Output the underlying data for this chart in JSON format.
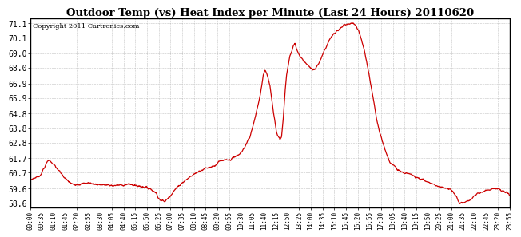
{
  "title": "Outdoor Temp (vs) Heat Index per Minute (Last 24 Hours) 20110620",
  "copyright": "Copyright 2011 Cartronics.com",
  "line_color": "#cc0000",
  "background_color": "#ffffff",
  "grid_color": "#aaaaaa",
  "y_ticks": [
    58.6,
    59.6,
    60.7,
    61.7,
    62.8,
    63.8,
    64.8,
    65.9,
    66.9,
    68.0,
    69.0,
    70.1,
    71.1
  ],
  "ylim": [
    58.3,
    71.4
  ],
  "x_labels": [
    "00:00",
    "00:35",
    "01:10",
    "01:45",
    "02:20",
    "02:55",
    "03:30",
    "04:05",
    "04:40",
    "05:15",
    "05:50",
    "06:25",
    "07:00",
    "07:35",
    "08:10",
    "08:45",
    "09:20",
    "09:55",
    "10:30",
    "11:05",
    "11:40",
    "12:15",
    "12:50",
    "13:25",
    "14:00",
    "14:35",
    "15:10",
    "15:45",
    "16:20",
    "16:55",
    "17:30",
    "18:05",
    "18:40",
    "19:15",
    "19:50",
    "20:25",
    "21:00",
    "21:35",
    "22:10",
    "22:45",
    "23:20",
    "23:55"
  ],
  "keypoints": [
    [
      0.0,
      60.2
    ],
    [
      0.5,
      60.5
    ],
    [
      0.92,
      61.6
    ],
    [
      1.1,
      61.4
    ],
    [
      1.4,
      60.9
    ],
    [
      1.75,
      60.3
    ],
    [
      2.1,
      59.9
    ],
    [
      2.5,
      59.9
    ],
    [
      2.9,
      60.0
    ],
    [
      3.3,
      59.9
    ],
    [
      3.7,
      59.85
    ],
    [
      4.2,
      59.8
    ],
    [
      4.6,
      59.85
    ],
    [
      5.0,
      59.9
    ],
    [
      5.3,
      59.8
    ],
    [
      5.6,
      59.75
    ],
    [
      6.0,
      59.6
    ],
    [
      6.3,
      59.3
    ],
    [
      6.5,
      58.8
    ],
    [
      6.75,
      58.7
    ],
    [
      7.0,
      59.1
    ],
    [
      7.3,
      59.6
    ],
    [
      7.6,
      60.0
    ],
    [
      7.9,
      60.3
    ],
    [
      8.2,
      60.6
    ],
    [
      8.5,
      60.85
    ],
    [
      8.75,
      61.0
    ],
    [
      9.0,
      61.1
    ],
    [
      9.25,
      61.2
    ],
    [
      9.5,
      61.5
    ],
    [
      9.75,
      61.55
    ],
    [
      10.0,
      61.6
    ],
    [
      10.25,
      61.8
    ],
    [
      10.5,
      62.0
    ],
    [
      10.75,
      62.5
    ],
    [
      11.0,
      63.2
    ],
    [
      11.25,
      64.5
    ],
    [
      11.5,
      66.0
    ],
    [
      11.67,
      67.5
    ],
    [
      11.75,
      67.8
    ],
    [
      11.83,
      67.6
    ],
    [
      12.0,
      66.8
    ],
    [
      12.17,
      65.0
    ],
    [
      12.33,
      63.5
    ],
    [
      12.5,
      63.0
    ],
    [
      12.58,
      63.2
    ],
    [
      12.67,
      64.5
    ],
    [
      12.75,
      66.2
    ],
    [
      12.83,
      67.5
    ],
    [
      13.0,
      68.8
    ],
    [
      13.17,
      69.5
    ],
    [
      13.25,
      69.7
    ],
    [
      13.33,
      69.3
    ],
    [
      13.5,
      68.8
    ],
    [
      13.67,
      68.5
    ],
    [
      13.83,
      68.3
    ],
    [
      14.0,
      68.0
    ],
    [
      14.17,
      67.8
    ],
    [
      14.33,
      68.0
    ],
    [
      14.5,
      68.5
    ],
    [
      14.67,
      69.0
    ],
    [
      14.83,
      69.5
    ],
    [
      15.0,
      70.0
    ],
    [
      15.17,
      70.3
    ],
    [
      15.33,
      70.5
    ],
    [
      15.5,
      70.7
    ],
    [
      15.67,
      70.9
    ],
    [
      15.83,
      71.0
    ],
    [
      16.0,
      71.0
    ],
    [
      16.17,
      71.1
    ],
    [
      16.25,
      71.0
    ],
    [
      16.33,
      70.8
    ],
    [
      16.5,
      70.3
    ],
    [
      16.67,
      69.5
    ],
    [
      16.83,
      68.5
    ],
    [
      17.0,
      67.2
    ],
    [
      17.17,
      65.8
    ],
    [
      17.33,
      64.5
    ],
    [
      17.5,
      63.5
    ],
    [
      17.67,
      62.7
    ],
    [
      17.83,
      62.0
    ],
    [
      18.0,
      61.5
    ],
    [
      18.17,
      61.2
    ],
    [
      18.33,
      61.0
    ],
    [
      18.5,
      60.8
    ],
    [
      18.67,
      60.7
    ],
    [
      18.83,
      60.65
    ],
    [
      19.0,
      60.6
    ],
    [
      19.17,
      60.5
    ],
    [
      19.33,
      60.4
    ],
    [
      19.5,
      60.3
    ],
    [
      19.67,
      60.2
    ],
    [
      19.83,
      60.1
    ],
    [
      20.0,
      60.0
    ],
    [
      20.17,
      59.9
    ],
    [
      20.33,
      59.8
    ],
    [
      20.5,
      59.7
    ],
    [
      20.67,
      59.65
    ],
    [
      20.83,
      59.6
    ],
    [
      21.0,
      59.55
    ],
    [
      21.17,
      59.4
    ],
    [
      21.33,
      59.0
    ],
    [
      21.5,
      58.6
    ],
    [
      21.67,
      58.6
    ],
    [
      21.83,
      58.7
    ],
    [
      22.0,
      58.8
    ],
    [
      22.17,
      59.0
    ],
    [
      22.33,
      59.2
    ],
    [
      22.5,
      59.3
    ],
    [
      22.67,
      59.4
    ],
    [
      22.83,
      59.5
    ],
    [
      23.0,
      59.55
    ],
    [
      23.17,
      59.6
    ],
    [
      23.33,
      59.6
    ],
    [
      23.5,
      59.5
    ],
    [
      23.67,
      59.4
    ],
    [
      23.83,
      59.3
    ],
    [
      24.0,
      59.2
    ]
  ]
}
